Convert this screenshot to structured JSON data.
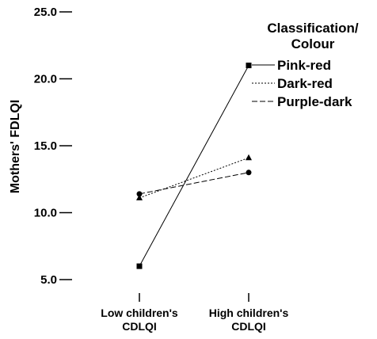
{
  "chart_data": {
    "type": "line",
    "ylabel": "Mothers' FDLQI",
    "xlabel": "",
    "categories": [
      "Low children's CDLQI",
      "High children's CDLQI"
    ],
    "category_lines": [
      [
        "Low children's",
        "CDLQI"
      ],
      [
        "High children's",
        "CDLQI"
      ]
    ],
    "yticks": [
      "5.0",
      "10.0",
      "15.0",
      "20.0",
      "25.0"
    ],
    "ylim": [
      5.0,
      25.0
    ],
    "grid": false,
    "legend": {
      "title_lines": [
        "Classification/",
        "Colour"
      ],
      "placement": "right"
    },
    "series": [
      {
        "name": "Pink-red",
        "values": [
          6.0,
          21.0
        ],
        "marker": "square",
        "dash": ""
      },
      {
        "name": "Dark-red",
        "values": [
          11.1,
          14.1
        ],
        "marker": "triangle",
        "dash": "2,2"
      },
      {
        "name": "Purple-dark",
        "values": [
          11.4,
          13.0
        ],
        "marker": "circle",
        "dash": "7,3"
      }
    ]
  }
}
